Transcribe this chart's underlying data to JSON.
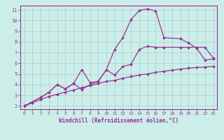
{
  "xlabel": "Windchill (Refroidissement éolien,°C)",
  "ylabel": "",
  "bg_color": "#cceee8",
  "grid_color": "#aacccc",
  "line_color": "#993399",
  "xlim": [
    -0.5,
    23.5
  ],
  "ylim": [
    1.7,
    11.4
  ],
  "xticks": [
    0,
    1,
    2,
    3,
    4,
    5,
    6,
    7,
    8,
    9,
    10,
    11,
    12,
    13,
    14,
    15,
    16,
    17,
    18,
    19,
    20,
    21,
    22,
    23
  ],
  "yticks": [
    2,
    3,
    4,
    5,
    6,
    7,
    8,
    9,
    10,
    11
  ],
  "line1_x": [
    0,
    1,
    2,
    3,
    4,
    5,
    6,
    7,
    8,
    9,
    10,
    11,
    12,
    13,
    14,
    15,
    16,
    17,
    18,
    19,
    20,
    21,
    22,
    23
  ],
  "line1_y": [
    2.0,
    2.3,
    2.6,
    2.9,
    3.1,
    3.3,
    3.5,
    3.7,
    3.9,
    4.1,
    4.3,
    4.4,
    4.6,
    4.75,
    4.9,
    5.0,
    5.15,
    5.25,
    5.35,
    5.45,
    5.55,
    5.6,
    5.65,
    5.7
  ],
  "line2_x": [
    0,
    2,
    3,
    4,
    5,
    6,
    7,
    8,
    9,
    10,
    11,
    12,
    13,
    14,
    15,
    16,
    17,
    19,
    20,
    21,
    22,
    23
  ],
  "line2_y": [
    2.0,
    2.8,
    3.3,
    4.0,
    3.6,
    4.1,
    3.55,
    4.0,
    4.3,
    5.4,
    4.9,
    5.7,
    5.9,
    7.3,
    7.6,
    7.5,
    7.5,
    7.5,
    7.5,
    7.5,
    7.5,
    6.5
  ],
  "line3_x": [
    0,
    2,
    3,
    4,
    5,
    6,
    7,
    8,
    9,
    10,
    11,
    12,
    13,
    14,
    15,
    16,
    17,
    19,
    20,
    21,
    22,
    23
  ],
  "line3_y": [
    2.0,
    2.8,
    3.3,
    4.0,
    3.6,
    4.1,
    5.4,
    4.2,
    4.3,
    5.4,
    7.3,
    8.4,
    10.1,
    10.95,
    11.1,
    10.9,
    8.4,
    8.3,
    7.9,
    7.4,
    6.3,
    6.4
  ]
}
